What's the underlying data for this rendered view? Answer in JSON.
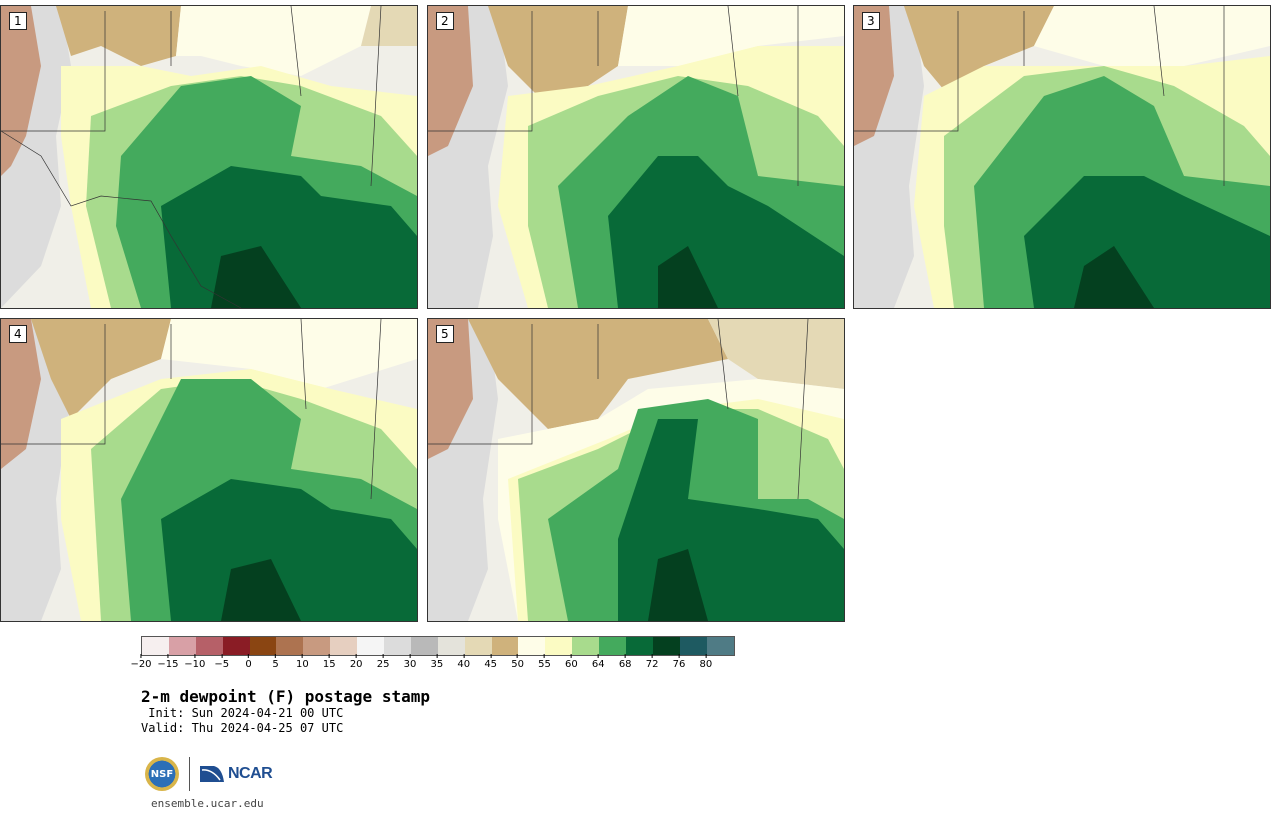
{
  "stamps": [
    {
      "label": "1"
    },
    {
      "label": "2"
    },
    {
      "label": "3"
    },
    {
      "label": "4"
    },
    {
      "label": "5"
    }
  ],
  "colorbar": {
    "ticks": [
      "−20",
      "−15",
      "−10",
      "−5",
      "0",
      "5",
      "10",
      "15",
      "20",
      "25",
      "30",
      "35",
      "40",
      "45",
      "50",
      "55",
      "60",
      "64",
      "68",
      "72",
      "76",
      "80"
    ],
    "colors": [
      "#f6efef",
      "#d8a0a6",
      "#b66068",
      "#8a1c25",
      "#8a4512",
      "#ad7350",
      "#c89a80",
      "#e6cfc0",
      "#f5f5f5",
      "#dcdcdc",
      "#b9b9b9",
      "#e4e3db",
      "#e4d9b5",
      "#cfb27c",
      "#fefde8",
      "#fbfbc3",
      "#a8db8d",
      "#44aa5d",
      "#086a38",
      "#04401f",
      "#1e5a61",
      "#4f7b85"
    ],
    "color_meaning": "2-m dewpoint shading bins"
  },
  "title": "2-m dewpoint (F) postage stamp",
  "init": " Init: Sun 2024-04-21 00 UTC",
  "valid": "Valid: Thu 2024-04-25 07 UTC",
  "logo": {
    "nsf": "NSF",
    "ncar": "NCAR"
  },
  "url": "ensemble.ucar.edu"
}
